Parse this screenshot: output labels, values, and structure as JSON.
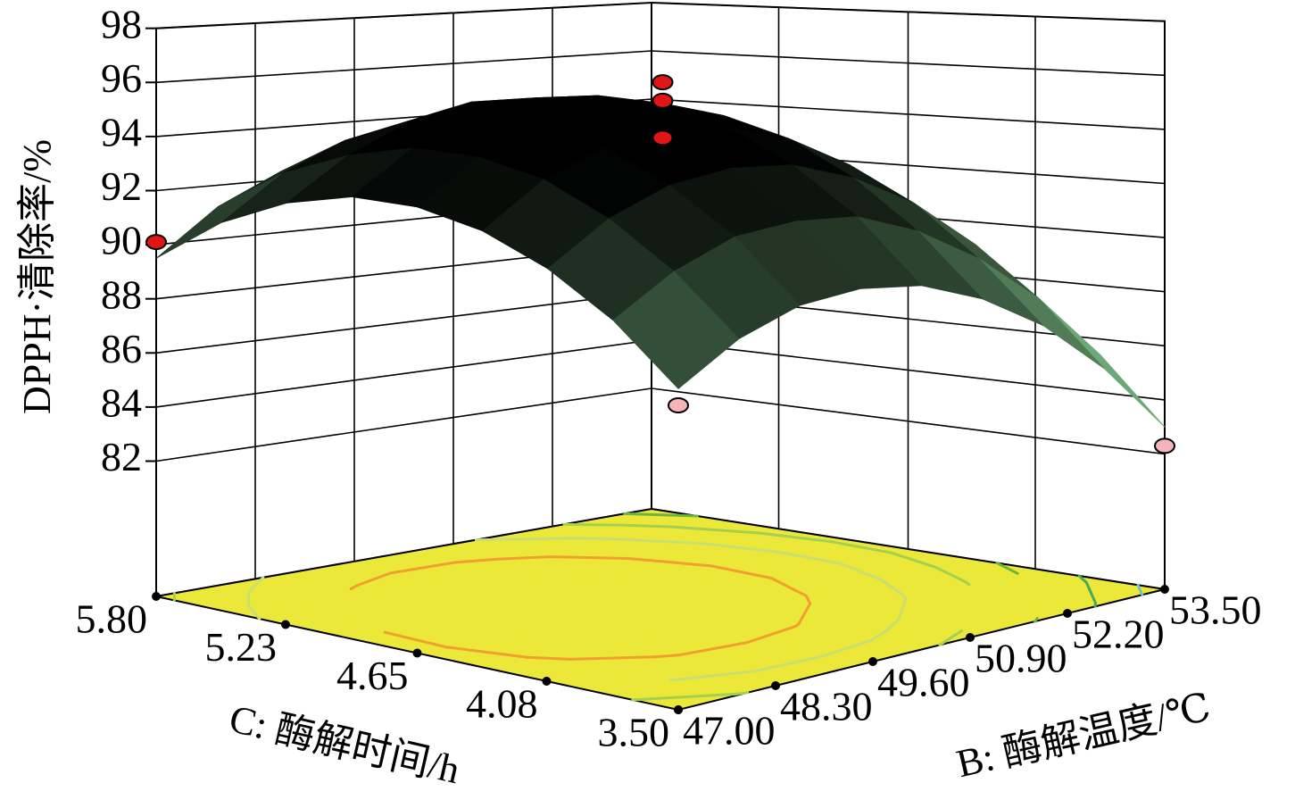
{
  "chart_data": {
    "type": "surface",
    "xlabel": "B: 酶解温度/℃",
    "ylabel": "C: 酶解时间/h",
    "zlabel": "DPPH·清除率/%",
    "xlim": [
      47,
      53.5
    ],
    "ylim": [
      3.5,
      5.8
    ],
    "zlim": [
      77,
      98
    ],
    "xticks": [
      {
        "value": 47,
        "label": "47.00"
      },
      {
        "value": 48.3,
        "label": "48.30"
      },
      {
        "value": 49.6,
        "label": "49.60"
      },
      {
        "value": 50.9,
        "label": "50.90"
      },
      {
        "value": 52.2,
        "label": "52.20"
      },
      {
        "value": 53.5,
        "label": "53.50"
      }
    ],
    "yticks": [
      {
        "value": 3.5,
        "label": "3.50"
      },
      {
        "value": 4.08,
        "label": "4.08"
      },
      {
        "value": 4.65,
        "label": "4.65"
      },
      {
        "value": 5.23,
        "label": "5.23"
      },
      {
        "value": 5.8,
        "label": "5.80"
      }
    ],
    "zticks": [
      82,
      84,
      86,
      88,
      90,
      92,
      94,
      96,
      98
    ],
    "x": [
      47,
      47.8125,
      48.625,
      49.4375,
      50.25,
      51.0625,
      51.875,
      52.6875,
      53.5
    ],
    "y": [
      3.5,
      3.7875,
      4.075,
      4.3625,
      4.65,
      4.9375,
      5.225,
      5.5125,
      5.8
    ],
    "z": [
      [
        88.6,
        90.6,
        92.0,
        92.9,
        93.3,
        93.2,
        92.5,
        91.3,
        89.5
      ],
      [
        89.9,
        91.9,
        93.4,
        94.4,
        94.8,
        94.7,
        94.0,
        92.9,
        91.2
      ],
      [
        90.6,
        92.7,
        94.2,
        95.2,
        95.7,
        95.6,
        95.0,
        93.9,
        92.3
      ],
      [
        90.7,
        92.8,
        94.4,
        95.5,
        96.0,
        96.0,
        95.5,
        94.4,
        92.8
      ],
      [
        90.3,
        92.5,
        94.1,
        95.2,
        95.8,
        95.8,
        95.3,
        94.3,
        92.8
      ],
      [
        89.3,
        91.5,
        93.2,
        94.4,
        95.0,
        95.1,
        94.7,
        93.7,
        92.2
      ],
      [
        87.8,
        90.0,
        91.8,
        93.0,
        93.7,
        93.8,
        93.4,
        92.5,
        91.0
      ],
      [
        85.7,
        88.0,
        89.8,
        91.0,
        91.8,
        91.9,
        91.6,
        90.7,
        89.3
      ],
      [
        83.0,
        85.4,
        87.2,
        88.5,
        89.3,
        89.5,
        89.2,
        88.4,
        87.0
      ]
    ],
    "surface_color": "#000000",
    "mesh_color": "#6fa878",
    "floor_color": "#ece83a",
    "contour_levels": [
      84,
      86,
      88,
      90,
      92,
      94
    ],
    "contour_colors": [
      "#6cc4c8",
      "#4aa860",
      "#6cb640",
      "#a4d050",
      "#c8e070",
      "#f0a030"
    ],
    "points": {
      "x": [
        47,
        50.25,
        50.25,
        50.25,
        47,
        53.5
      ],
      "y": [
        5.8,
        4.65,
        4.65,
        4.65,
        3.5,
        3.5
      ],
      "z": [
        90.1,
        96.6,
        95.9,
        94.5,
        88.0,
        82.3
      ],
      "colors": [
        "#e01515",
        "#e01515",
        "#e01515",
        "#e01515",
        "#f5b5b8",
        "#f5b5b8"
      ]
    }
  }
}
